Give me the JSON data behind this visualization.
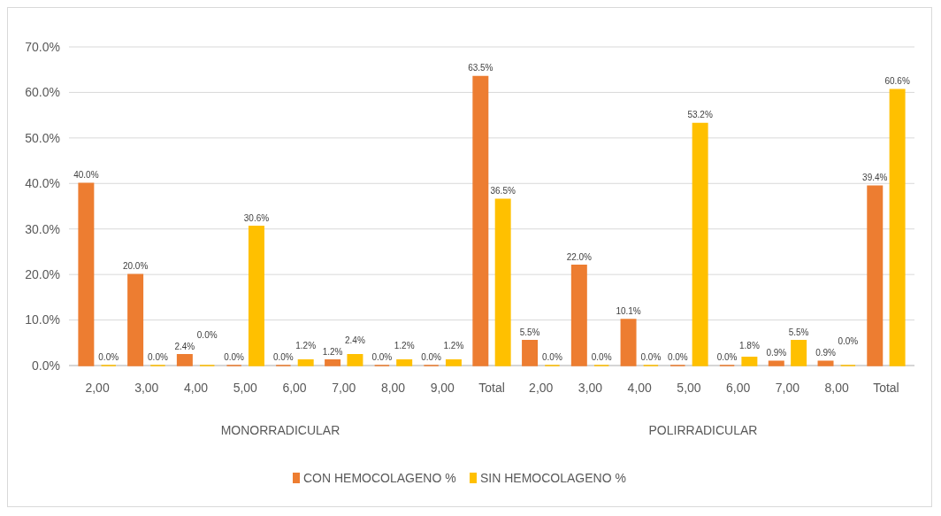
{
  "chart_data": {
    "type": "bar",
    "categories": [
      "2,00",
      "3,00",
      "4,00",
      "5,00",
      "6,00",
      "7,00",
      "8,00",
      "9,00",
      "Total",
      "2,00",
      "3,00",
      "4,00",
      "5,00",
      "6,00",
      "7,00",
      "8,00",
      "Total"
    ],
    "series": [
      {
        "name": "CON HEMOCOLAGENO %",
        "color": "#ed7d31",
        "values": [
          40.0,
          20.0,
          2.4,
          0.0,
          0.0,
          1.2,
          0.0,
          0.0,
          63.5,
          5.5,
          22.0,
          10.1,
          0.0,
          0.0,
          0.9,
          0.9,
          39.4
        ],
        "value_labels": [
          "40.0%",
          "20.0%",
          "2.4%",
          "0.0%",
          "0.0%",
          "1.2%",
          "0.0%",
          "0.0%",
          "63.5%",
          "5.5%",
          "22.0%",
          "10.1%",
          "0.0%",
          "0.0%",
          "0.9%",
          "0.9%",
          "39.4%"
        ]
      },
      {
        "name": "SIN HEMOCOLAGENO %",
        "color": "#ffc000",
        "values": [
          0.0,
          0.0,
          0.0,
          30.6,
          1.2,
          2.4,
          1.2,
          1.2,
          36.5,
          0.0,
          0.0,
          0.0,
          53.2,
          1.8,
          5.5,
          0.0,
          60.6
        ],
        "value_labels": [
          "0.0%",
          "0.0%",
          "0.0%",
          "30.6%",
          "1.2%",
          "2.4%",
          "1.2%",
          "1.2%",
          "36.5%",
          "0.0%",
          "0.0%",
          "0.0%",
          "53.2%",
          "1.8%",
          "5.5%",
          "0.0%",
          "60.6%"
        ]
      }
    ],
    "ylim": [
      0,
      70
    ],
    "yticks": [
      {
        "value": 0,
        "label": "0.0%"
      },
      {
        "value": 10,
        "label": "10.0%"
      },
      {
        "value": 20,
        "label": "20.0%"
      },
      {
        "value": 30,
        "label": "30.0%"
      },
      {
        "value": 40,
        "label": "40.0%"
      },
      {
        "value": 50,
        "label": "50.0%"
      },
      {
        "value": 60,
        "label": "60.0%"
      },
      {
        "value": 70,
        "label": "70.0%"
      }
    ],
    "grid": "y",
    "legend": "bottom",
    "annotations": [
      "MONORRADICULAR",
      "POLIRRADICULAR"
    ]
  }
}
